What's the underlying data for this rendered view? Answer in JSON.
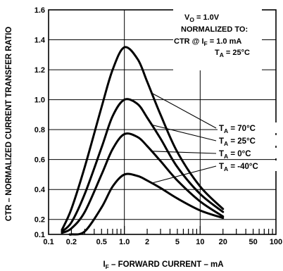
{
  "chart_data": {
    "type": "line",
    "title": "",
    "xlabel": "I F – FORWARD CURRENT – mA",
    "xlabel_main": "I",
    "xlabel_sub": "F",
    "xlabel_rest": " – FORWARD CURRENT – mA",
    "ylabel": "CTR – NORMALIZED CURRENT TRANSFER RATIO",
    "x_scale": "log",
    "xlim": [
      0.1,
      100
    ],
    "ylim": [
      0.1,
      1.6
    ],
    "x_ticks": [
      0.1,
      0.2,
      0.5,
      1.0,
      2,
      5,
      10,
      20,
      50,
      100
    ],
    "x_tick_labels": [
      "0.1",
      "0.2",
      "0.5",
      "1.0",
      "2",
      "5",
      "10",
      "20",
      "50",
      "100"
    ],
    "y_ticks": [
      0.1,
      0.2,
      0.4,
      0.6,
      0.8,
      1.0,
      1.2,
      1.4,
      1.6
    ],
    "y_tick_labels": [
      "0.1",
      "0.2",
      "0.4",
      "0.6",
      "0.8",
      "1.0",
      "1.2",
      "1.4",
      "1.6"
    ],
    "grid": true,
    "annotation": {
      "line1_main": "V",
      "line1_sub": "O",
      "line1_rest": " = 1.0V",
      "line2": "NORMALIZED TO:",
      "line3_a": "CTR @ I",
      "line3_sub": "F",
      "line3_rest": " = 1.0 mA",
      "line4_main": "T",
      "line4_sub": "A",
      "line4_rest": " = 25°C"
    },
    "series": [
      {
        "name": "TA = 70°C",
        "label_main": "T",
        "label_sub": "A",
        "label_rest": " = 70°C",
        "x": [
          0.15,
          0.2,
          0.3,
          0.5,
          0.7,
          1.0,
          1.5,
          2,
          3,
          5,
          10,
          20
        ],
        "y": [
          0.13,
          0.27,
          0.55,
          0.95,
          1.2,
          1.35,
          1.27,
          1.12,
          0.9,
          0.65,
          0.42,
          0.27
        ]
      },
      {
        "name": "TA = 25°C",
        "label_main": "T",
        "label_sub": "A",
        "label_rest": " = 25°C",
        "x": [
          0.15,
          0.2,
          0.3,
          0.5,
          0.7,
          1.0,
          1.5,
          2,
          3,
          5,
          10,
          20
        ],
        "y": [
          0.12,
          0.18,
          0.37,
          0.68,
          0.89,
          1.0,
          0.97,
          0.88,
          0.74,
          0.55,
          0.37,
          0.25
        ]
      },
      {
        "name": "TA = 0°C",
        "label_main": "T",
        "label_sub": "A",
        "label_rest": " = 0°C",
        "x": [
          0.15,
          0.2,
          0.3,
          0.5,
          0.7,
          1.0,
          1.5,
          2,
          3,
          5,
          10,
          20
        ],
        "y": [
          0.11,
          0.14,
          0.25,
          0.5,
          0.67,
          0.77,
          0.75,
          0.69,
          0.59,
          0.46,
          0.32,
          0.22
        ]
      },
      {
        "name": "TA = -40°C",
        "label_main": "T",
        "label_sub": "A",
        "label_rest": " = -40°C",
        "x": [
          0.19,
          0.2,
          0.3,
          0.5,
          0.7,
          1.0,
          1.5,
          2,
          3,
          5,
          10,
          20
        ],
        "y": [
          0.1,
          0.1,
          0.12,
          0.28,
          0.42,
          0.5,
          0.49,
          0.46,
          0.41,
          0.34,
          0.26,
          0.21
        ]
      }
    ]
  }
}
